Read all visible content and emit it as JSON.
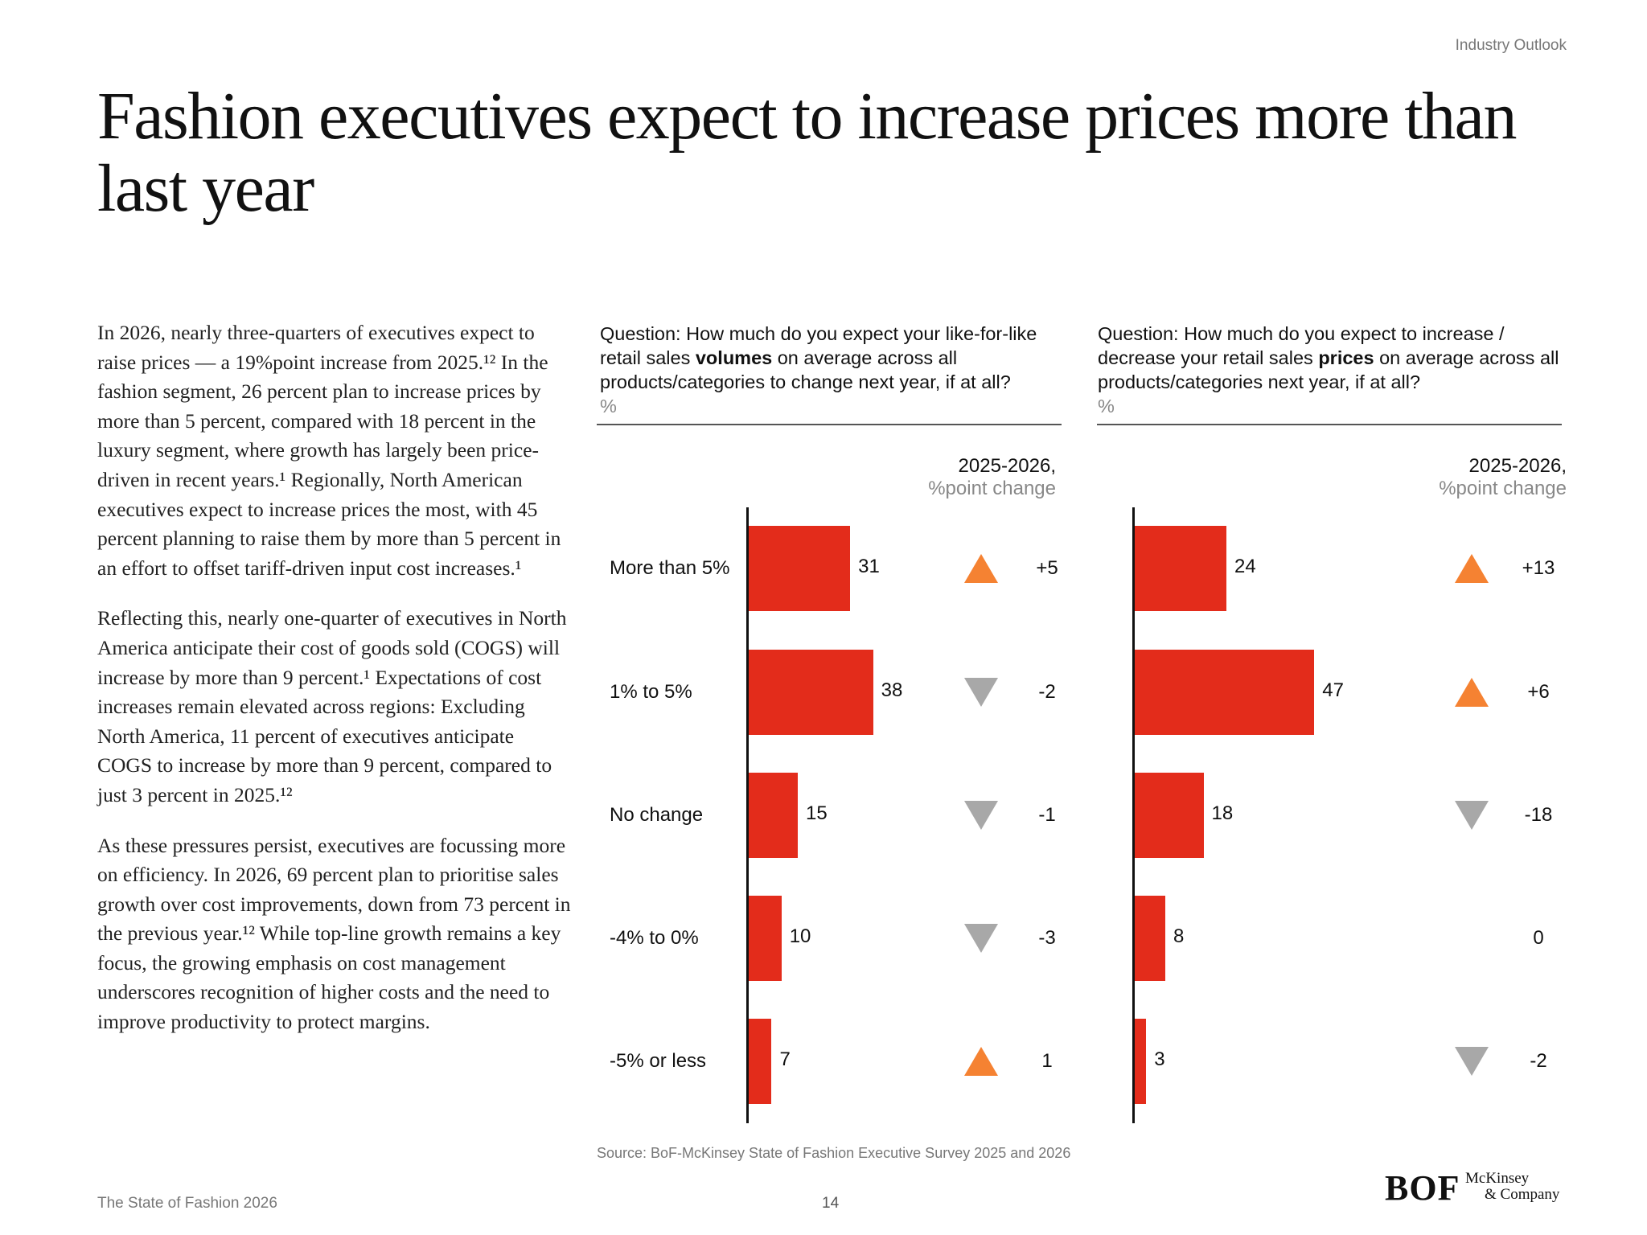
{
  "header": {
    "section": "Industry Outlook"
  },
  "title": "Fashion executives expect to increase prices more than last year",
  "body": [
    "In 2026, nearly three-quarters of executives expect to raise prices — a 19%point increase from 2025.¹² In the fashion segment, 26 percent plan to increase prices by more than 5 percent, compared with 18 percent in the luxury segment, where growth has largely been price-driven in recent years.¹ Regionally, North American executives expect to increase prices the most, with 45 percent planning to raise them by more than 5 percent in an effort to offset tariff-driven input cost increases.¹",
    "Reflecting this, nearly one-quarter of executives in North America anticipate their cost of goods sold (COGS) will increase by more than 9 percent.¹ Expectations of cost increases remain elevated across regions: Excluding North America, 11 percent of executives anticipate COGS to increase by more than 9 percent, compared to just 3 percent in 2025.¹²",
    "As these pressures persist, executives are focussing more on efficiency. In 2026, 69 percent plan to prioritise sales growth over cost improvements, down from 73 percent in the previous year.¹² While top-line growth remains a key focus, the growing emphasis on cost management underscores recognition of higher costs and the need to improve productivity to protect margins."
  ],
  "colors": {
    "bar": "#e32c1b",
    "up": "#f58232",
    "down": "#a8a8a8"
  },
  "chart_data": [
    {
      "type": "bar",
      "orientation": "horizontal",
      "question_pre": "Question: How much do you expect your like-for-like retail sales ",
      "question_bold": "volumes",
      "question_post": " on average across all products/categories to change next year, if at all?",
      "unit": "%",
      "change_header": "2025-2026,",
      "change_subheader": "%point change",
      "categories": [
        "More than 5%",
        "1% to 5%",
        "No change",
        "-4% to 0%",
        "-5% or less"
      ],
      "values": [
        31,
        38,
        15,
        10,
        7
      ],
      "change": [
        "+5",
        "-2",
        "-1",
        "-3",
        "1"
      ],
      "change_direction": [
        "up",
        "down",
        "down",
        "down",
        "up"
      ]
    },
    {
      "type": "bar",
      "orientation": "horizontal",
      "question_pre": "Question: How much do you expect to increase / decrease your retail sales ",
      "question_bold": "prices",
      "question_post": " on average across all products/categories next year, if at all?",
      "unit": "%",
      "change_header": "2025-2026,",
      "change_subheader": "%point change",
      "categories": [
        "More than 5%",
        "1% to 5%",
        "No change",
        "-4% to 0%",
        "-5% or less"
      ],
      "values": [
        24,
        47,
        18,
        8,
        3
      ],
      "change": [
        "+13",
        "+6",
        "-18",
        "0",
        "-2"
      ],
      "change_direction": [
        "up",
        "up",
        "down",
        "none",
        "down"
      ]
    }
  ],
  "source": "Source: BoF-McKinsey State of Fashion Executive Survey 2025 and 2026",
  "footer": {
    "publication": "The State of Fashion 2026",
    "page": "14"
  },
  "logos": {
    "bof": "BOF",
    "mckinsey_line1": "McKinsey",
    "mckinsey_line2": "& Company"
  }
}
